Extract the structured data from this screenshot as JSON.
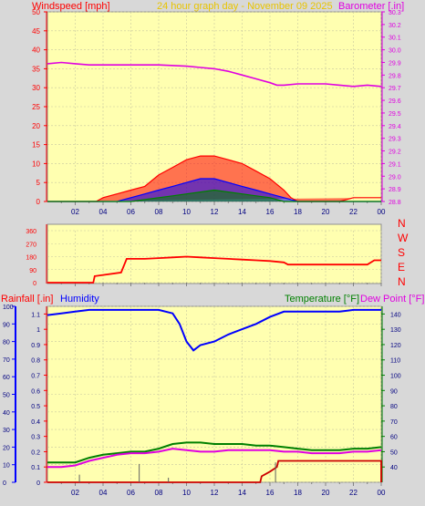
{
  "colors": {
    "plot_bg": "#ffffb0",
    "page_bg": "#d8d8d8",
    "windspeed": "#ff0000",
    "wind_avg": "#0000ff",
    "wind_low": "#008000",
    "barometer": "#e000e0",
    "direction": "#ff0000",
    "humidity": "#0000ff",
    "temperature": "#008000",
    "dew_point": "#e000e0",
    "rainfall": "#cc0000",
    "header_gold": "#e8c400"
  },
  "header": {
    "windspeed_label": "Windspeed [mph]",
    "title": "24 hour graph day - November 09 2025",
    "barometer_label": "Barometer [.in]"
  },
  "direction_labels": [
    "N",
    "W",
    "S",
    "E",
    "N"
  ],
  "bottom_header": {
    "rainfall_label": "Rainfall [.in]",
    "humidity_label": "Humidity",
    "temperature_label": "Temperature [°F]",
    "dewpoint_label": "Dew Point [°F]"
  },
  "chart_data": [
    {
      "type": "line",
      "title": "24 hour graph day - November 09 2025",
      "x_ticks": [
        "02",
        "04",
        "06",
        "08",
        "10",
        "12",
        "14",
        "16",
        "18",
        "20",
        "22",
        "00"
      ],
      "y_left": {
        "label": "Windspeed [mph]",
        "lim": [
          0,
          50
        ],
        "ticks": [
          0,
          5,
          10,
          15,
          20,
          25,
          30,
          35,
          40,
          45,
          50
        ]
      },
      "y_right": {
        "label": "Barometer [.in]",
        "lim": [
          28.8,
          30.3
        ],
        "ticks": [
          28.8,
          28.9,
          29.0,
          29.1,
          29.2,
          29.3,
          29.4,
          29.5,
          29.6,
          29.7,
          29.8,
          29.9,
          30.0,
          30.1,
          30.2,
          30.3
        ]
      },
      "series": [
        {
          "name": "Barometer [.in]",
          "axis": "right",
          "x": [
            0,
            1,
            2,
            3,
            4,
            6,
            8,
            10,
            11,
            12,
            13,
            14,
            15,
            16,
            16.5,
            17,
            18,
            19,
            20,
            21,
            22,
            23,
            24
          ],
          "values": [
            29.89,
            29.9,
            29.89,
            29.88,
            29.88,
            29.88,
            29.88,
            29.87,
            29.86,
            29.85,
            29.83,
            29.8,
            29.77,
            29.74,
            29.72,
            29.72,
            29.73,
            29.73,
            29.73,
            29.72,
            29.71,
            29.72,
            29.71
          ]
        },
        {
          "name": "Windspeed [mph]",
          "axis": "left",
          "x": [
            0,
            3.5,
            4,
            5,
            6,
            7,
            8,
            9,
            10,
            11,
            12,
            13,
            14,
            15,
            16,
            17,
            17.5,
            18,
            21,
            22,
            23,
            24
          ],
          "values": [
            0,
            0,
            1,
            2,
            3,
            4,
            7,
            9,
            11,
            12,
            12,
            11,
            10,
            8,
            6,
            3,
            1,
            0,
            0,
            1,
            1,
            1
          ]
        },
        {
          "x": [
            0,
            5,
            6,
            7,
            8,
            9,
            10,
            11,
            12,
            13,
            14,
            15,
            16,
            17,
            18,
            24
          ],
          "values": [
            0,
            0,
            1,
            2,
            3,
            4,
            5,
            6,
            6,
            5,
            4,
            3,
            2,
            1,
            0,
            0
          ]
        },
        {
          "x": [
            0,
            6,
            7,
            8,
            9,
            10,
            11,
            12,
            13,
            14,
            15,
            16,
            17,
            24
          ],
          "values": [
            0,
            0,
            0.5,
            1,
            1.5,
            2,
            2.5,
            3,
            2.5,
            2,
            1.5,
            1,
            0,
            0
          ]
        }
      ]
    },
    {
      "type": "line",
      "y_ticks": [
        0,
        90,
        180,
        270,
        360
      ],
      "ylim": [
        0,
        360
      ],
      "series": [
        {
          "x": [
            0,
            3.3,
            3.4,
            5.3,
            5.7,
            7,
            8,
            9,
            10,
            11,
            12,
            13,
            14,
            15,
            16,
            17,
            17.3,
            23,
            23.5,
            24
          ],
          "values": [
            0,
            0,
            45,
            70,
            165,
            165,
            170,
            175,
            180,
            175,
            170,
            165,
            160,
            155,
            150,
            140,
            125,
            125,
            155,
            155
          ]
        }
      ]
    },
    {
      "type": "line",
      "x_ticks": [
        "02",
        "04",
        "06",
        "08",
        "10",
        "12",
        "14",
        "16",
        "18",
        "20",
        "22",
        "00"
      ],
      "y_left_humidity": {
        "lim": [
          0,
          100
        ],
        "ticks": [
          0,
          10,
          20,
          30,
          40,
          50,
          60,
          70,
          80,
          90,
          100
        ]
      },
      "y_left_rain": {
        "label": "Rainfall [.in]",
        "lim": [
          0,
          1.15
        ],
        "ticks": [
          0,
          0.1,
          0.2,
          0.3,
          0.4,
          0.5,
          0.6,
          0.7,
          0.8,
          0.9,
          1,
          1.1
        ]
      },
      "y_right": {
        "lim": [
          30,
          145
        ],
        "ticks": [
          40,
          50,
          60,
          70,
          80,
          90,
          100,
          110,
          120,
          130,
          140
        ]
      },
      "series": [
        {
          "name": "Humidity",
          "axis": "left",
          "x": [
            0,
            1,
            2,
            3,
            4,
            5,
            6,
            7,
            8,
            9,
            9.5,
            10,
            10.5,
            11,
            12,
            13,
            14,
            15,
            16,
            17,
            18,
            19,
            20,
            21,
            22,
            23,
            24
          ],
          "values": [
            95,
            96,
            97,
            98,
            98,
            98,
            98,
            98,
            98,
            96,
            90,
            80,
            75,
            78,
            80,
            84,
            87,
            90,
            94,
            97,
            97,
            97,
            97,
            97,
            98,
            98,
            98
          ]
        },
        {
          "name": "Temperature [°F]",
          "axis": "right",
          "x": [
            0,
            1,
            2,
            3,
            4,
            5,
            6,
            7,
            8,
            9,
            10,
            11,
            12,
            13,
            14,
            15,
            16,
            17,
            18,
            19,
            20,
            21,
            22,
            23,
            24
          ],
          "values": [
            43,
            43,
            43,
            46,
            48,
            49,
            50,
            50,
            52,
            55,
            56,
            56,
            55,
            55,
            55,
            54,
            54,
            53,
            52,
            51,
            51,
            51,
            52,
            52,
            53
          ]
        },
        {
          "name": "Dew Point [°F]",
          "axis": "right",
          "x": [
            0,
            1,
            2,
            3,
            4,
            5,
            6,
            7,
            8,
            9,
            10,
            11,
            12,
            13,
            14,
            15,
            16,
            17,
            18,
            19,
            20,
            21,
            22,
            23,
            24
          ],
          "values": [
            40,
            40,
            41,
            44,
            46,
            48,
            49,
            49,
            50,
            52,
            51,
            50,
            50,
            51,
            51,
            51,
            51,
            50,
            50,
            49,
            49,
            49,
            50,
            50,
            51
          ]
        },
        {
          "name": "Rainfall [.in]",
          "axis": "left",
          "x": [
            0,
            15.3,
            15.4,
            16,
            16.5,
            16.6,
            24,
            24
          ],
          "values": [
            0,
            0,
            0.04,
            0.07,
            0.1,
            0.14,
            0.14,
            0
          ]
        }
      ],
      "spikes": [
        {
          "x": 2.3,
          "value": 0.05
        },
        {
          "x": 6.6,
          "value": 0.12
        },
        {
          "x": 8.7,
          "value": 0.03
        },
        {
          "x": 16.4,
          "value": 0.13
        }
      ]
    }
  ]
}
